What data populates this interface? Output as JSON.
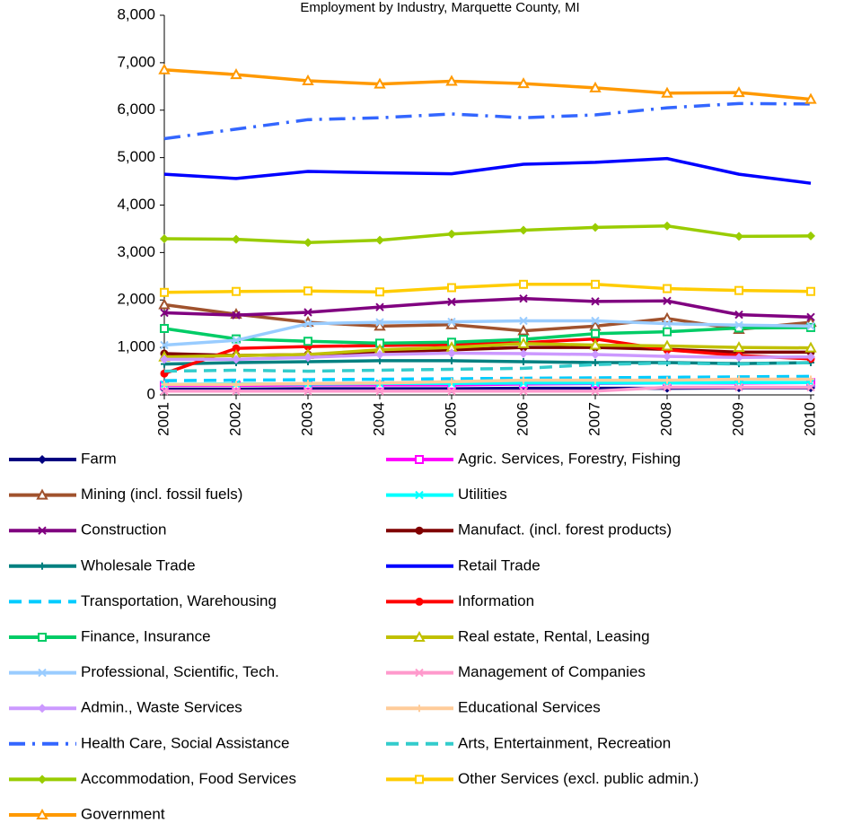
{
  "chart_data": {
    "type": "line",
    "title": "Employment by Industry, Marquette County, MI",
    "categories": [
      "2001",
      "2002",
      "2003",
      "2004",
      "2005",
      "2006",
      "2007",
      "2008",
      "2009",
      "2010"
    ],
    "ylim": [
      0,
      8000
    ],
    "yticks": [
      0,
      {
        "value": 1000,
        "label": "1,000"
      },
      {
        "value": 2000,
        "label": "2,000"
      },
      {
        "value": 3000,
        "label": "3,000"
      },
      {
        "value": 4000,
        "label": "4,000"
      },
      {
        "value": 5000,
        "label": "5,000"
      },
      {
        "value": 6000,
        "label": "6,000"
      },
      {
        "value": 7000,
        "label": "7,000"
      },
      {
        "value": 8000,
        "label": "8,000"
      }
    ],
    "series": [
      {
        "name": "Farm",
        "color": "#000080",
        "marker": "diamond",
        "values": [
          120,
          120,
          130,
          130,
          130,
          140,
          140,
          140,
          150,
          150
        ]
      },
      {
        "name": "Agric. Services, Forestry, Fishing",
        "color": "#ff00ff",
        "marker": "square",
        "values": [
          200,
          200,
          210,
          210,
          210,
          230,
          240,
          250,
          250,
          260
        ]
      },
      {
        "name": "Mining (incl. fossil fuels)",
        "color": "#a0522d",
        "marker": "triangle",
        "values": [
          1900,
          1700,
          1530,
          1450,
          1480,
          1350,
          1450,
          1610,
          1380,
          1530
        ]
      },
      {
        "name": "Utilities",
        "color": "#00ffff",
        "marker": "x",
        "values": [
          220,
          230,
          230,
          240,
          240,
          250,
          250,
          250,
          260,
          260
        ]
      },
      {
        "name": "Construction",
        "color": "#800080",
        "marker": "x",
        "values": [
          1730,
          1680,
          1740,
          1850,
          1960,
          2030,
          1970,
          1980,
          1690,
          1640
        ]
      },
      {
        "name": "Manufact. (incl. forest products)",
        "color": "#800000",
        "marker": "circle",
        "values": [
          870,
          830,
          850,
          900,
          950,
          1000,
          1000,
          960,
          900,
          900
        ]
      },
      {
        "name": "Wholesale Trade",
        "color": "#008080",
        "marker": "plus",
        "values": [
          650,
          680,
          700,
          720,
          720,
          700,
          680,
          680,
          660,
          680
        ]
      },
      {
        "name": "Retail Trade",
        "color": "#0000ff",
        "marker": "none",
        "values": [
          4650,
          4560,
          4710,
          4680,
          4660,
          4860,
          4900,
          4980,
          4650,
          4460
        ]
      },
      {
        "name": "Transportation, Warehousing",
        "color": "#00ccff",
        "marker": "none",
        "dash": "dashed",
        "values": [
          300,
          310,
          320,
          330,
          340,
          350,
          360,
          370,
          380,
          390
        ]
      },
      {
        "name": "Information",
        "color": "#ff0000",
        "marker": "circle",
        "values": [
          450,
          980,
          1020,
          1040,
          1060,
          1100,
          1180,
          950,
          830,
          760
        ]
      },
      {
        "name": "Finance, Insurance",
        "color": "#00cc66",
        "marker": "square",
        "values": [
          1400,
          1180,
          1130,
          1090,
          1110,
          1170,
          1290,
          1330,
          1410,
          1420
        ]
      },
      {
        "name": "Real estate, Rental, Leasing",
        "color": "#c0c000",
        "marker": "triangle",
        "values": [
          800,
          830,
          850,
          950,
          1000,
          1080,
          1050,
          1030,
          1000,
          990
        ]
      },
      {
        "name": "Professional, Scientific, Tech.",
        "color": "#99ccff",
        "marker": "x",
        "values": [
          1050,
          1150,
          1500,
          1530,
          1540,
          1560,
          1560,
          1500,
          1470,
          1450
        ]
      },
      {
        "name": "Management of Companies",
        "color": "#ff99cc",
        "marker": "x",
        "values": [
          80,
          80,
          80,
          80,
          80,
          80,
          80,
          160,
          160,
          160
        ]
      },
      {
        "name": "Admin., Waste Services",
        "color": "#cc99ff",
        "marker": "diamond",
        "values": [
          750,
          750,
          790,
          850,
          880,
          870,
          850,
          810,
          790,
          800
        ]
      },
      {
        "name": "Educational Services",
        "color": "#ffcc99",
        "marker": "plus",
        "values": [
          220,
          220,
          240,
          250,
          280,
          310,
          310,
          310,
          330,
          330
        ]
      },
      {
        "name": "Health Care, Social Assistance",
        "color": "#3366ff",
        "marker": "none",
        "dash": "dashdot",
        "values": [
          5400,
          5600,
          5800,
          5840,
          5920,
          5840,
          5900,
          6050,
          6140,
          6130
        ]
      },
      {
        "name": "Arts, Entertainment, Recreation",
        "color": "#33cccc",
        "marker": "none",
        "dash": "dashed",
        "values": [
          500,
          520,
          500,
          520,
          540,
          560,
          640,
          670,
          650,
          680
        ]
      },
      {
        "name": "Accommodation, Food Services",
        "color": "#99cc00",
        "marker": "diamond",
        "values": [
          3290,
          3280,
          3210,
          3260,
          3390,
          3470,
          3530,
          3560,
          3340,
          3350
        ]
      },
      {
        "name": "Other Services (excl. public admin.)",
        "color": "#ffcc00",
        "marker": "square",
        "values": [
          2160,
          2180,
          2190,
          2170,
          2260,
          2330,
          2330,
          2240,
          2200,
          2180
        ]
      },
      {
        "name": "Government",
        "color": "#ff9900",
        "marker": "triangle",
        "values": [
          6850,
          6750,
          6620,
          6550,
          6610,
          6560,
          6470,
          6360,
          6370,
          6230
        ]
      }
    ]
  }
}
